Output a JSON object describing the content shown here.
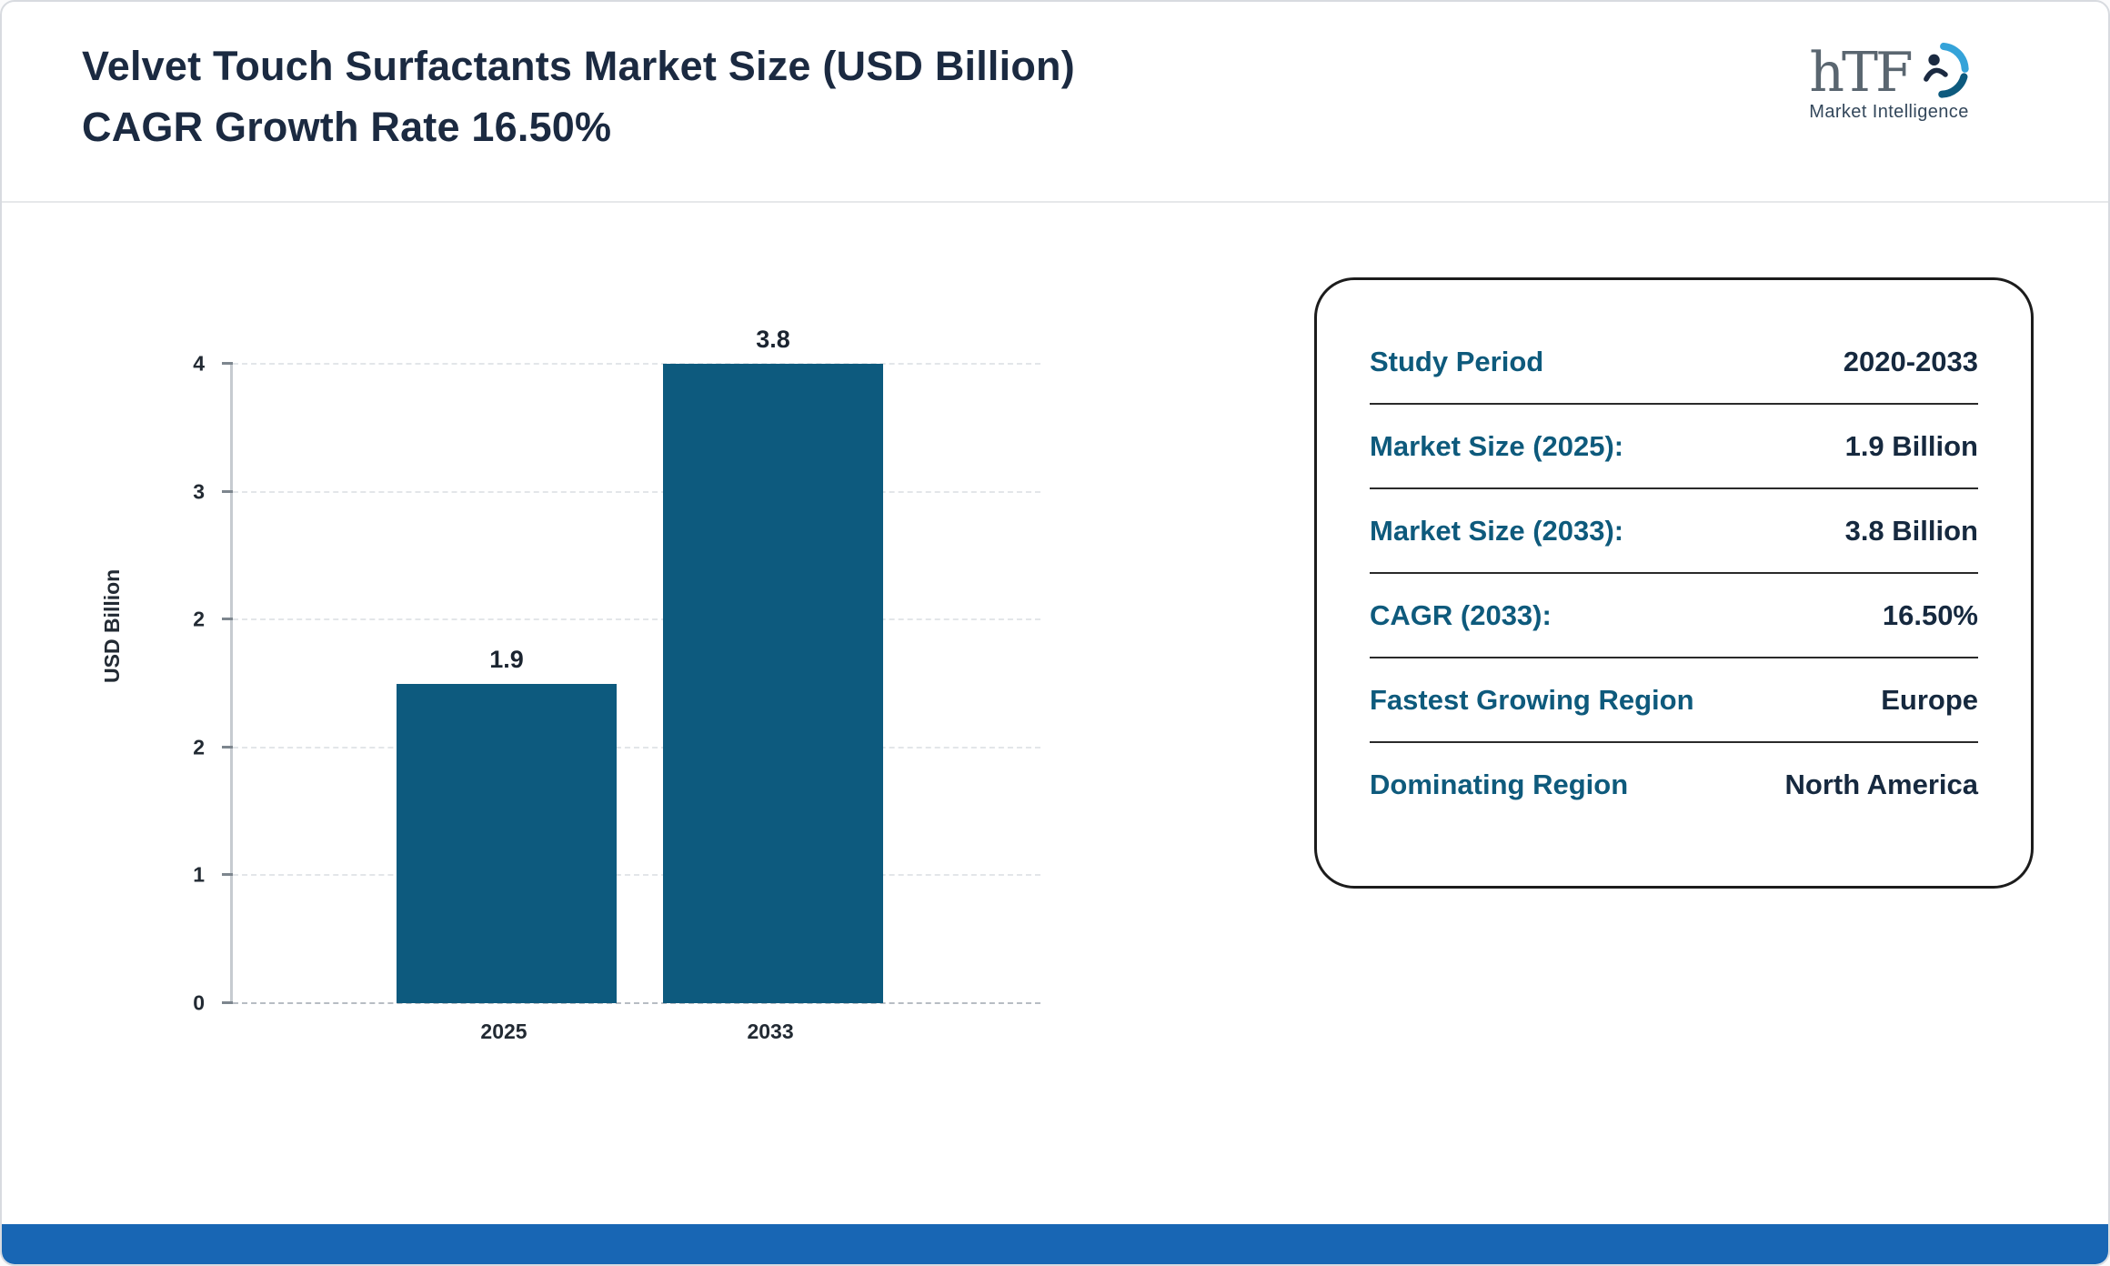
{
  "header": {
    "title": "Velvet Touch Surfactants Market Size (USD Billion) CAGR Growth Rate 16.50%",
    "logo_text": "hTF",
    "logo_subtext": "Market Intelligence"
  },
  "chart_data": {
    "type": "bar",
    "categories": [
      "2025",
      "2033"
    ],
    "values": [
      1.9,
      3.8
    ],
    "value_labels": [
      "1.9",
      "3.8"
    ],
    "title": "",
    "xlabel": "",
    "ylabel": "USD Billion",
    "ylim": [
      0,
      4
    ],
    "yticks_bottom_to_top": [
      "0",
      "1",
      "2",
      "2",
      "3",
      "4"
    ],
    "grid": "horizontal dashed",
    "legend": "none",
    "bar_color": "#0d5a7e"
  },
  "summary_card": {
    "rows": [
      {
        "label": "Study Period",
        "value": "2020-2033"
      },
      {
        "label": "Market Size (2025):",
        "value": "1.9 Billion"
      },
      {
        "label": "Market Size (2033):",
        "value": "3.8 Billion"
      },
      {
        "label": "CAGR (2033):",
        "value": "16.50%"
      },
      {
        "label": "Fastest Growing Region",
        "value": "Europe"
      },
      {
        "label": "Dominating Region",
        "value": "North America"
      }
    ]
  },
  "colors": {
    "bar": "#0d5a7e",
    "title_text": "#1b2a41",
    "card_label_text": "#0e5a7c",
    "card_value_text": "#16293f",
    "bottom_strip": "#1866b4",
    "logo_light_blue": "#35a3d9",
    "logo_teal": "#0d5a7e"
  }
}
